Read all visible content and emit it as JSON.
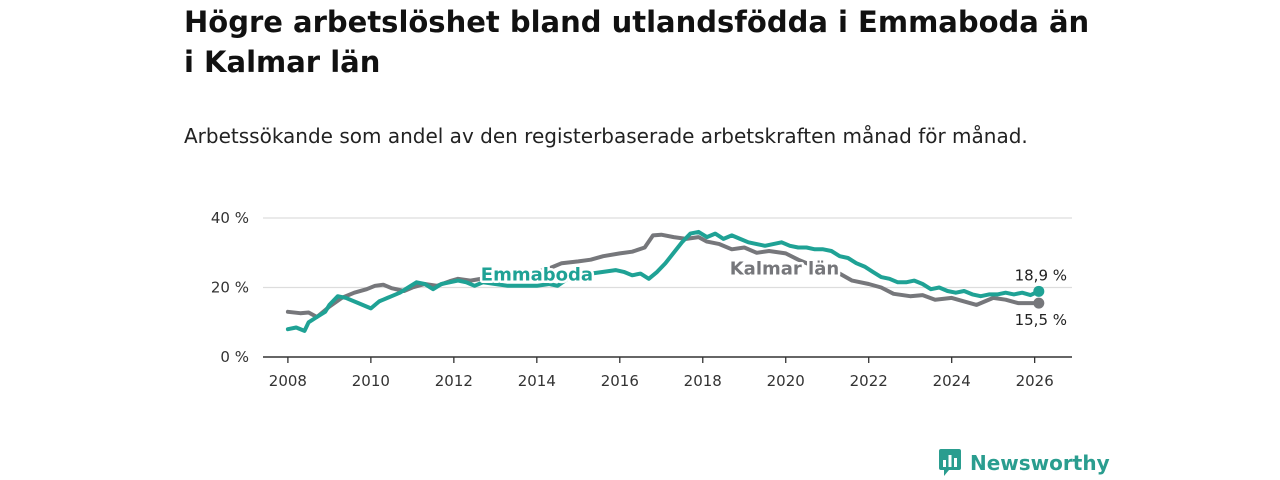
{
  "title": "Högre arbetslöshet bland utlandsfödda i Emmaboda än i Kalmar län",
  "subtitle": "Arbetssökande som andel av den registerbaserade arbetskraften månad för månad.",
  "brand": {
    "name": "Newsworthy",
    "icon": "newsworthy-logo-icon"
  },
  "colors": {
    "emmaboda": "#1fa295",
    "kalmar": "#76777b",
    "grid": "#dddddd",
    "axis": "#333333"
  },
  "chart_data": {
    "type": "line",
    "title": "Högre arbetslöshet bland utlandsfödda i Emmaboda än i Kalmar län",
    "subtitle": "Arbetssökande som andel av den registerbaserade arbetskraften månad för månad.",
    "xlabel": "",
    "ylabel": "",
    "xlim": [
      2007.4,
      2026.9
    ],
    "ylim": [
      0,
      40
    ],
    "x_ticks": [
      2008,
      2010,
      2012,
      2014,
      2016,
      2018,
      2020,
      2022,
      2024,
      2026
    ],
    "x_tick_labels": [
      "2008",
      "2010",
      "2012",
      "2014",
      "2016",
      "2018",
      "2020",
      "2022",
      "2024",
      "2026"
    ],
    "y_ticks": [
      0,
      20,
      40
    ],
    "y_tick_labels": [
      "0 %",
      "20 %",
      "40 %"
    ],
    "grid": true,
    "series": [
      {
        "name": "Kalmar län",
        "label": "Kalmar län",
        "end_label": "15,5 %",
        "x": [
          2008.0,
          2008.3,
          2008.5,
          2008.7,
          2009.0,
          2009.3,
          2009.6,
          2009.9,
          2010.1,
          2010.3,
          2010.5,
          2010.8,
          2011.0,
          2011.3,
          2011.6,
          2011.9,
          2012.1,
          2012.4,
          2012.7,
          2013.0,
          2013.3,
          2013.6,
          2014.0,
          2014.3,
          2014.6,
          2015.0,
          2015.3,
          2015.6,
          2016.0,
          2016.3,
          2016.6,
          2016.8,
          2017.0,
          2017.3,
          2017.6,
          2017.9,
          2018.1,
          2018.4,
          2018.7,
          2019.0,
          2019.3,
          2019.6,
          2020.0,
          2020.3,
          2020.6,
          2021.0,
          2021.3,
          2021.6,
          2022.0,
          2022.3,
          2022.6,
          2023.0,
          2023.3,
          2023.6,
          2024.0,
          2024.3,
          2024.6,
          2025.0,
          2025.3,
          2025.6,
          2026.1
        ],
        "values": [
          13.0,
          12.6,
          12.8,
          11.5,
          14.5,
          17.0,
          18.5,
          19.5,
          20.5,
          20.8,
          19.8,
          19.0,
          20.0,
          21.0,
          20.5,
          21.8,
          22.5,
          22.0,
          22.6,
          22.5,
          23.5,
          24.0,
          24.5,
          25.5,
          27.0,
          27.5,
          28.0,
          29.0,
          29.8,
          30.3,
          31.5,
          35.0,
          35.2,
          34.5,
          34.0,
          34.5,
          33.2,
          32.5,
          31.0,
          31.5,
          30.0,
          30.5,
          29.8,
          28.0,
          26.5,
          25.0,
          24.0,
          22.0,
          21.0,
          20.0,
          18.2,
          17.5,
          17.8,
          16.5,
          17.0,
          16.0,
          15.0,
          17.0,
          16.5,
          15.5,
          15.5
        ]
      },
      {
        "name": "Emmaboda",
        "label": "Emmaboda",
        "end_label": "18,9 %",
        "x": [
          2008.0,
          2008.2,
          2008.4,
          2008.5,
          2008.7,
          2008.9,
          2009.0,
          2009.2,
          2009.4,
          2009.5,
          2009.7,
          2009.9,
          2010.0,
          2010.2,
          2010.4,
          2010.5,
          2010.7,
          2010.9,
          2011.1,
          2011.3,
          2011.5,
          2011.7,
          2011.9,
          2012.1,
          2012.3,
          2012.5,
          2012.7,
          2013.0,
          2013.3,
          2013.6,
          2014.0,
          2014.3,
          2014.5,
          2014.8,
          2015.0,
          2015.3,
          2015.6,
          2015.9,
          2016.1,
          2016.3,
          2016.5,
          2016.7,
          2016.9,
          2017.1,
          2017.3,
          2017.5,
          2017.7,
          2017.9,
          2018.1,
          2018.3,
          2018.5,
          2018.7,
          2018.9,
          2019.1,
          2019.3,
          2019.5,
          2019.7,
          2019.9,
          2020.1,
          2020.3,
          2020.5,
          2020.7,
          2020.9,
          2021.1,
          2021.3,
          2021.5,
          2021.7,
          2021.9,
          2022.1,
          2022.3,
          2022.5,
          2022.7,
          2022.9,
          2023.1,
          2023.3,
          2023.5,
          2023.7,
          2023.9,
          2024.1,
          2024.3,
          2024.5,
          2024.7,
          2024.9,
          2025.1,
          2025.3,
          2025.5,
          2025.7,
          2025.9,
          2026.1
        ],
        "values": [
          8.0,
          8.5,
          7.5,
          10.0,
          11.5,
          13.0,
          15.0,
          17.5,
          17.0,
          16.5,
          15.5,
          14.5,
          14.0,
          16.0,
          17.0,
          17.5,
          18.5,
          20.0,
          21.5,
          21.0,
          19.5,
          21.0,
          21.5,
          22.0,
          21.5,
          20.5,
          21.5,
          21.0,
          20.5,
          20.5,
          20.5,
          21.0,
          20.5,
          23.0,
          23.5,
          24.0,
          24.5,
          25.0,
          24.5,
          23.5,
          24.0,
          22.5,
          24.5,
          27.0,
          30.0,
          33.0,
          35.5,
          36.0,
          34.5,
          35.5,
          34.0,
          35.0,
          34.0,
          33.0,
          32.5,
          32.0,
          32.5,
          33.0,
          32.0,
          31.5,
          31.5,
          31.0,
          31.0,
          30.5,
          29.0,
          28.5,
          27.0,
          26.0,
          24.5,
          23.0,
          22.5,
          21.5,
          21.5,
          22.0,
          21.0,
          19.5,
          20.0,
          19.0,
          18.5,
          19.0,
          18.0,
          17.5,
          18.0,
          18.0,
          18.5,
          18.0,
          18.5,
          17.8,
          18.9
        ]
      }
    ]
  }
}
